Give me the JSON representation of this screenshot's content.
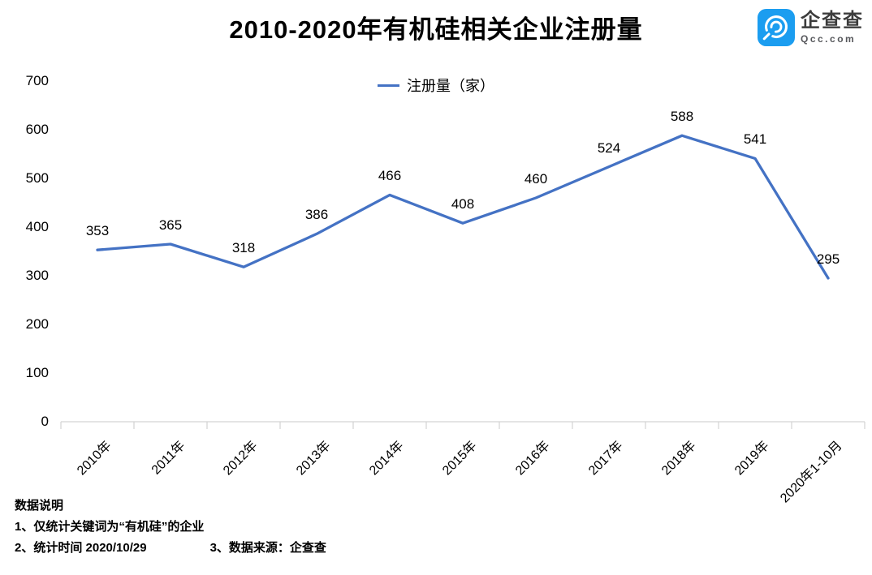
{
  "header": {
    "title": "2010-2020年有机硅相关企业注册量"
  },
  "logo": {
    "name": "企查查",
    "domain": "Qcc.com",
    "icon": "qcc-magnifier-icon",
    "icon_color": "#1b9df0"
  },
  "chart_data": {
    "type": "line",
    "title": "2010-2020年有机硅相关企业注册量",
    "legend_position": "top",
    "legend": [
      "注册量（家）"
    ],
    "categories": [
      "2010年",
      "2011年",
      "2012年",
      "2013年",
      "2014年",
      "2015年",
      "2016年",
      "2017年",
      "2018年",
      "2019年",
      "2020年1-10月"
    ],
    "series": [
      {
        "name": "注册量（家）",
        "color": "#4472C4",
        "values": [
          353,
          365,
          318,
          386,
          466,
          408,
          460,
          524,
          588,
          541,
          295
        ]
      }
    ],
    "ylim": [
      0,
      700
    ],
    "ytick_step": 100,
    "grid": false,
    "data_labels": true,
    "xlabel": "",
    "ylabel": ""
  },
  "footer": {
    "heading": "数据说明",
    "notes": [
      "1、仅统计关键词为“有机硅”的企业",
      "2、统计时间 2020/10/29",
      "3、数据来源：企查查"
    ]
  },
  "colors": {
    "line": "#4472C4",
    "axis": "#d3d3d3",
    "text": "#000000"
  }
}
